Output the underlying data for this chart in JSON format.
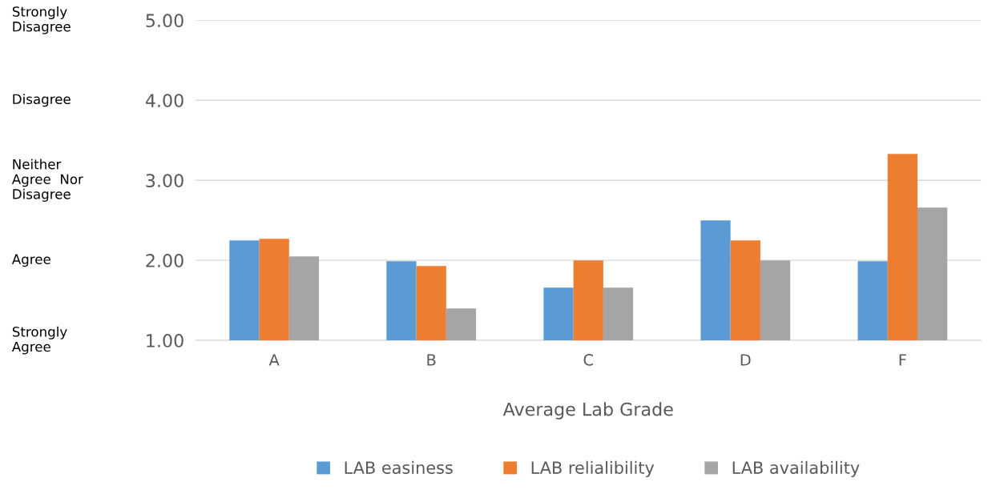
{
  "chart_data": {
    "type": "bar",
    "xlabel": "Average Lab Grade",
    "categories": [
      "A",
      "B",
      "C",
      "D",
      "F"
    ],
    "series": [
      {
        "name": "LAB easiness",
        "color": "#5b9bd5",
        "values": [
          2.25,
          1.99,
          1.66,
          2.5,
          1.99
        ]
      },
      {
        "name": "LAB relialibility",
        "color": "#ed7d31",
        "values": [
          2.27,
          1.93,
          2.0,
          2.25,
          3.33
        ]
      },
      {
        "name": "LAB availability",
        "color": "#a5a5a5",
        "values": [
          2.05,
          1.4,
          1.66,
          2.0,
          2.66
        ]
      }
    ],
    "ylim": [
      1,
      5
    ],
    "yticks": [
      {
        "value": 1,
        "label": "1.00"
      },
      {
        "value": 2,
        "label": "2.00"
      },
      {
        "value": 3,
        "label": "3.00"
      },
      {
        "value": 4,
        "label": "4.00"
      },
      {
        "value": 5,
        "label": "5.00"
      }
    ],
    "annotations": [
      "Strongly\nAgree",
      "Agree",
      "Neither\nAgree  Nor\nDisagree",
      "Disagree",
      "Strongly\nDisagree"
    ],
    "grid": "y",
    "legend": "bottom"
  }
}
